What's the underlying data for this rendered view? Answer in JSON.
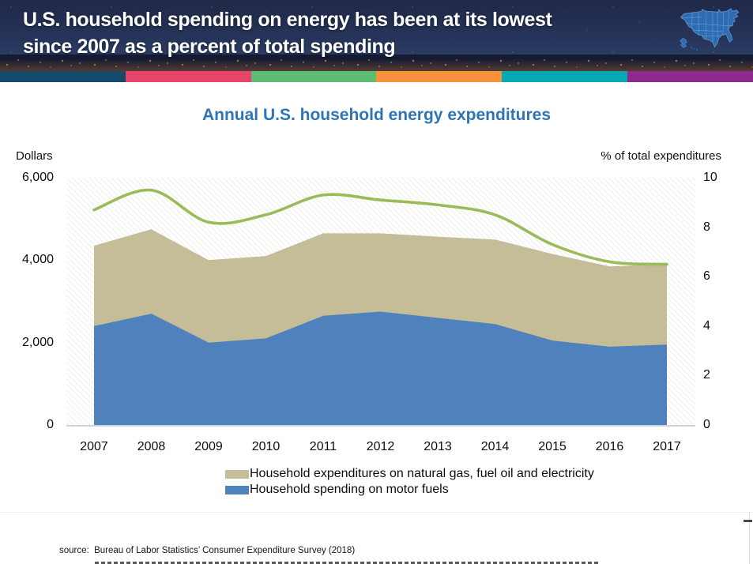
{
  "header": {
    "title_line1": "U.S. household spending on energy has been at its lowest",
    "title_line2": "since 2007 as a percent of total spending",
    "stripe_colors": [
      "#164a6b",
      "#e8436b",
      "#5cbc74",
      "#f6933c",
      "#06a9b2",
      "#8f2b8f"
    ]
  },
  "chart_data": {
    "type": "area",
    "title": "Annual U.S. household energy expenditures",
    "title_color": "#2e75b6",
    "categories": [
      "2007",
      "2008",
      "2009",
      "2010",
      "2011",
      "2012",
      "2013",
      "2014",
      "2015",
      "2016",
      "2017"
    ],
    "series": [
      {
        "name": "Household spending on motor fuels",
        "type": "area",
        "stacked": true,
        "axis": "left",
        "color": "#4f81bd",
        "values": [
          2400,
          2700,
          2000,
          2100,
          2650,
          2750,
          2600,
          2450,
          2050,
          1900,
          1950
        ]
      },
      {
        "name": "Household expenditures on natural gas, fuel oil and electricity",
        "type": "area",
        "stacked": true,
        "axis": "left",
        "color": "#c4bd97",
        "values": [
          1950,
          2050,
          2000,
          2000,
          2000,
          1900,
          1970,
          2050,
          2100,
          1950,
          1950
        ]
      },
      {
        "name": "% of total expenditures",
        "type": "line",
        "smoothed": true,
        "axis": "right",
        "color": "#9bbb59",
        "values": [
          8.7,
          9.5,
          8.2,
          8.5,
          9.3,
          9.1,
          8.9,
          8.5,
          7.3,
          6.6,
          6.5
        ]
      }
    ],
    "left_axis": {
      "label": "Dollars",
      "min": 0,
      "max": 6000,
      "ticks": [
        0,
        2000,
        4000,
        6000
      ],
      "tick_labels": [
        "0",
        "2,000",
        "4,000",
        "6,000"
      ]
    },
    "right_axis": {
      "label": "% of total expenditures",
      "min": 0,
      "max": 10,
      "ticks": [
        0,
        2,
        4,
        6,
        8,
        10
      ],
      "tick_labels": [
        "0",
        "2",
        "4",
        "6",
        "8",
        "10"
      ]
    },
    "grid": false,
    "plot_background": "diagonal-hatch",
    "legend_position": "bottom"
  },
  "legend": {
    "items": [
      {
        "label": "Household expenditures on natural gas, fuel oil and electricity",
        "color": "#c4bd97"
      },
      {
        "label": "Household spending on motor fuels",
        "color": "#4f81bd"
      }
    ]
  },
  "source": {
    "text": "source:  Bureau of Labor Statistics’ Consumer Expenditure Survey (2018)"
  }
}
